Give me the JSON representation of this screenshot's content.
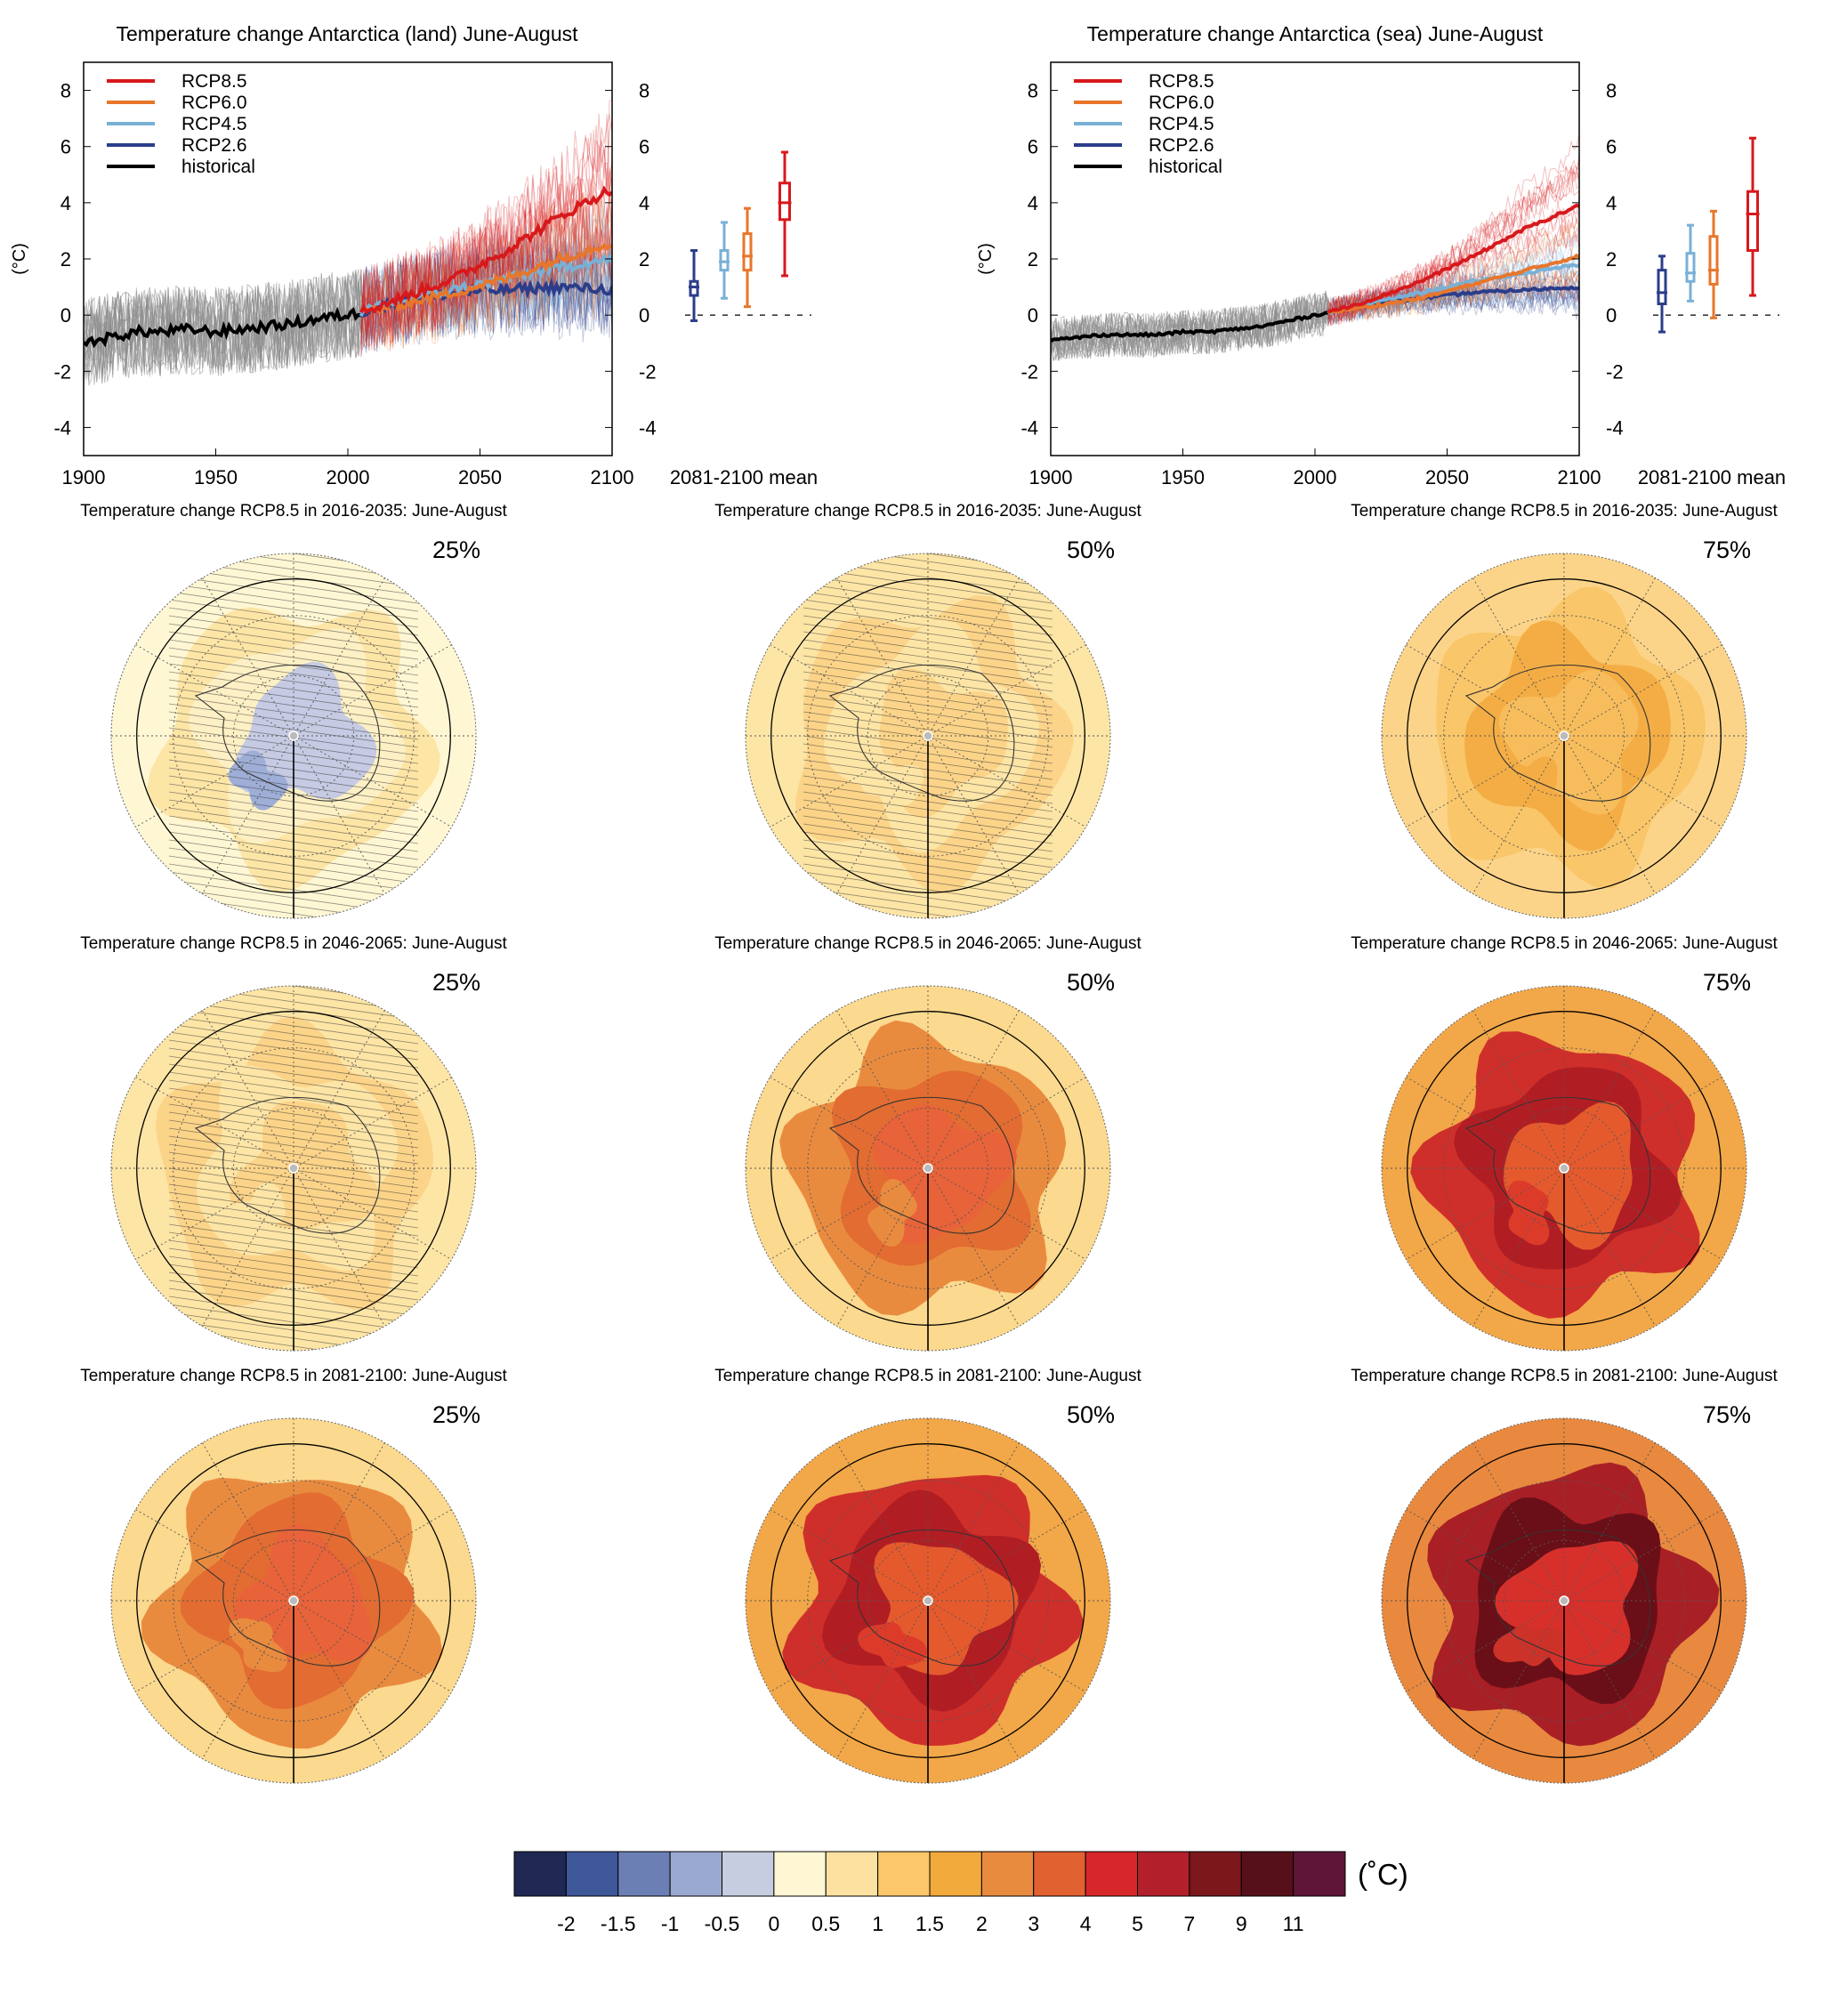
{
  "colors": {
    "rcp85": "#d7191c",
    "rcp60": "#e8762b",
    "rcp45": "#79b0d6",
    "rcp26": "#2b3d8a",
    "historical": "#000000",
    "historical_members": "#8c8c8c"
  },
  "chart_data": [
    {
      "type": "line",
      "title": "Temperature change Antarctica (land) June-August",
      "ylabel": "(°C)",
      "xlim": [
        1900,
        2100
      ],
      "ylim": [
        -5,
        9
      ],
      "x_ticks": [
        1900,
        1950,
        2000,
        2050,
        2100
      ],
      "y_ticks": [
        -4,
        -2,
        0,
        2,
        4,
        6,
        8
      ],
      "legend_position": "top-left",
      "grid": false,
      "series": [
        {
          "name": "historical",
          "key": "historical",
          "x": [
            1900,
            1910,
            1920,
            1930,
            1940,
            1950,
            1960,
            1970,
            1980,
            1990,
            2000,
            2005
          ],
          "y": [
            -1.0,
            -0.8,
            -0.6,
            -0.6,
            -0.5,
            -0.6,
            -0.5,
            -0.4,
            -0.3,
            -0.1,
            0.0,
            0.1
          ]
        },
        {
          "name": "RCP2.6",
          "key": "rcp26",
          "x": [
            2005,
            2020,
            2040,
            2060,
            2080,
            2100
          ],
          "y": [
            0.1,
            0.5,
            0.8,
            0.9,
            1.0,
            0.9
          ]
        },
        {
          "name": "RCP4.5",
          "key": "rcp45",
          "x": [
            2005,
            2020,
            2040,
            2060,
            2080,
            2100
          ],
          "y": [
            0.1,
            0.5,
            0.9,
            1.3,
            1.7,
            2.0
          ]
        },
        {
          "name": "RCP6.0",
          "key": "rcp60",
          "x": [
            2005,
            2020,
            2040,
            2060,
            2080,
            2100
          ],
          "y": [
            0.1,
            0.4,
            0.8,
            1.3,
            2.0,
            2.6
          ]
        },
        {
          "name": "RCP8.5",
          "key": "rcp85",
          "x": [
            2005,
            2020,
            2040,
            2060,
            2080,
            2100
          ],
          "y": [
            0.1,
            0.6,
            1.3,
            2.3,
            3.5,
            4.5
          ]
        }
      ],
      "boxes_label": "2081-2100 mean",
      "boxes": [
        {
          "key": "rcp26",
          "min": -0.2,
          "q1": 0.7,
          "median": 1.0,
          "q3": 1.2,
          "max": 2.3
        },
        {
          "key": "rcp45",
          "min": 0.6,
          "q1": 1.6,
          "median": 1.9,
          "q3": 2.3,
          "max": 3.3
        },
        {
          "key": "rcp60",
          "min": 0.3,
          "q1": 1.6,
          "median": 2.1,
          "q3": 2.9,
          "max": 3.8
        },
        {
          "key": "rcp85",
          "min": 1.4,
          "q1": 3.4,
          "median": 4.0,
          "q3": 4.7,
          "max": 5.8
        }
      ]
    },
    {
      "type": "line",
      "title": "Temperature change Antarctica (sea) June-August",
      "ylabel": "(°C)",
      "xlim": [
        1900,
        2100
      ],
      "ylim": [
        -5,
        9
      ],
      "x_ticks": [
        1900,
        1950,
        2000,
        2050,
        2100
      ],
      "y_ticks": [
        -4,
        -2,
        0,
        2,
        4,
        6,
        8
      ],
      "legend_position": "top-left",
      "grid": false,
      "series": [
        {
          "name": "historical",
          "key": "historical",
          "x": [
            1900,
            1910,
            1920,
            1930,
            1940,
            1950,
            1960,
            1970,
            1980,
            1990,
            2000,
            2005
          ],
          "y": [
            -0.9,
            -0.8,
            -0.7,
            -0.7,
            -0.7,
            -0.6,
            -0.6,
            -0.5,
            -0.4,
            -0.2,
            0.0,
            0.1
          ]
        },
        {
          "name": "RCP2.6",
          "key": "rcp26",
          "x": [
            2005,
            2020,
            2040,
            2060,
            2080,
            2100
          ],
          "y": [
            0.1,
            0.4,
            0.6,
            0.8,
            0.9,
            1.0
          ]
        },
        {
          "name": "RCP4.5",
          "key": "rcp45",
          "x": [
            2005,
            2020,
            2040,
            2060,
            2080,
            2100
          ],
          "y": [
            0.1,
            0.4,
            0.8,
            1.2,
            1.5,
            1.8
          ]
        },
        {
          "name": "RCP6.0",
          "key": "rcp60",
          "x": [
            2005,
            2020,
            2040,
            2060,
            2080,
            2100
          ],
          "y": [
            0.1,
            0.3,
            0.6,
            1.1,
            1.6,
            2.1
          ]
        },
        {
          "name": "RCP8.5",
          "key": "rcp85",
          "x": [
            2005,
            2020,
            2040,
            2060,
            2080,
            2100
          ],
          "y": [
            0.1,
            0.5,
            1.2,
            2.1,
            3.1,
            3.9
          ]
        }
      ],
      "boxes_label": "2081-2100 mean",
      "boxes": [
        {
          "key": "rcp26",
          "min": -0.6,
          "q1": 0.4,
          "median": 0.8,
          "q3": 1.6,
          "max": 2.1
        },
        {
          "key": "rcp45",
          "min": 0.5,
          "q1": 1.2,
          "median": 1.5,
          "q3": 2.2,
          "max": 3.2
        },
        {
          "key": "rcp60",
          "min": -0.1,
          "q1": 1.1,
          "median": 1.6,
          "q3": 2.8,
          "max": 3.7
        },
        {
          "key": "rcp85",
          "min": 0.7,
          "q1": 2.3,
          "median": 3.6,
          "q3": 4.4,
          "max": 6.3
        }
      ]
    },
    {
      "type": "heatmap",
      "projection": "south polar stereographic",
      "panels": [
        {
          "title": "Temperature change RCP8.5 in 2016-2035: June-August",
          "percentile": "25%",
          "level": 0,
          "hatched": true
        },
        {
          "title": "Temperature change RCP8.5 in 2016-2035: June-August",
          "percentile": "50%",
          "level": 1,
          "hatched": true
        },
        {
          "title": "Temperature change RCP8.5 in 2016-2035: June-August",
          "percentile": "75%",
          "level": 2,
          "hatched": false
        },
        {
          "title": "Temperature change RCP8.5 in 2046-2065: June-August",
          "percentile": "25%",
          "level": 1,
          "hatched": true
        },
        {
          "title": "Temperature change RCP8.5 in 2046-2065: June-August",
          "percentile": "50%",
          "level": 3,
          "hatched": false
        },
        {
          "title": "Temperature change RCP8.5 in 2046-2065: June-August",
          "percentile": "75%",
          "level": 4,
          "hatched": false
        },
        {
          "title": "Temperature change RCP8.5 in 2081-2100: June-August",
          "percentile": "25%",
          "level": 3,
          "hatched": false
        },
        {
          "title": "Temperature change RCP8.5 in 2081-2100: June-August",
          "percentile": "50%",
          "level": 4,
          "hatched": false
        },
        {
          "title": "Temperature change RCP8.5 in 2081-2100: June-August",
          "percentile": "75%",
          "level": 5,
          "hatched": false
        }
      ],
      "palettes": [
        [
          "#fff7d4",
          "#fde5a6",
          "#fdf0c4",
          "#c6cbe3",
          "#9eaed6"
        ],
        [
          "#fde5a6",
          "#fcd489",
          "#fde5a6",
          "#fcd489",
          "#fde5a6"
        ],
        [
          "#fcd489",
          "#f9c66a",
          "#f4ad45",
          "#f7bd5c",
          "#f4ad45"
        ],
        [
          "#fbd98e",
          "#e98b3f",
          "#e26c31",
          "#e8633a",
          "#e98b3f"
        ],
        [
          "#f2a748",
          "#cf2f2a",
          "#b01e24",
          "#e55a2d",
          "#dd3b2a"
        ],
        [
          "#e8893f",
          "#a91f26",
          "#6a0f17",
          "#d7302b",
          "#cd3229"
        ]
      ],
      "colorbar": {
        "unit": "(˚C)",
        "colors": [
          "#1f2753",
          "#3e5799",
          "#6c7fb5",
          "#9aa9d0",
          "#c7cde0",
          "#fff7d4",
          "#fde1a1",
          "#fbc76a",
          "#f2aa3c",
          "#e98b3f",
          "#e26130",
          "#d8272a",
          "#b31f2a",
          "#7c171c",
          "#56101a",
          "#5f1538"
        ],
        "ticks": [
          "-2",
          "-1.5",
          "-1",
          "-0.5",
          "0",
          "0.5",
          "1",
          "1.5",
          "2",
          "3",
          "4",
          "5",
          "7",
          "9",
          "11"
        ]
      }
    }
  ]
}
